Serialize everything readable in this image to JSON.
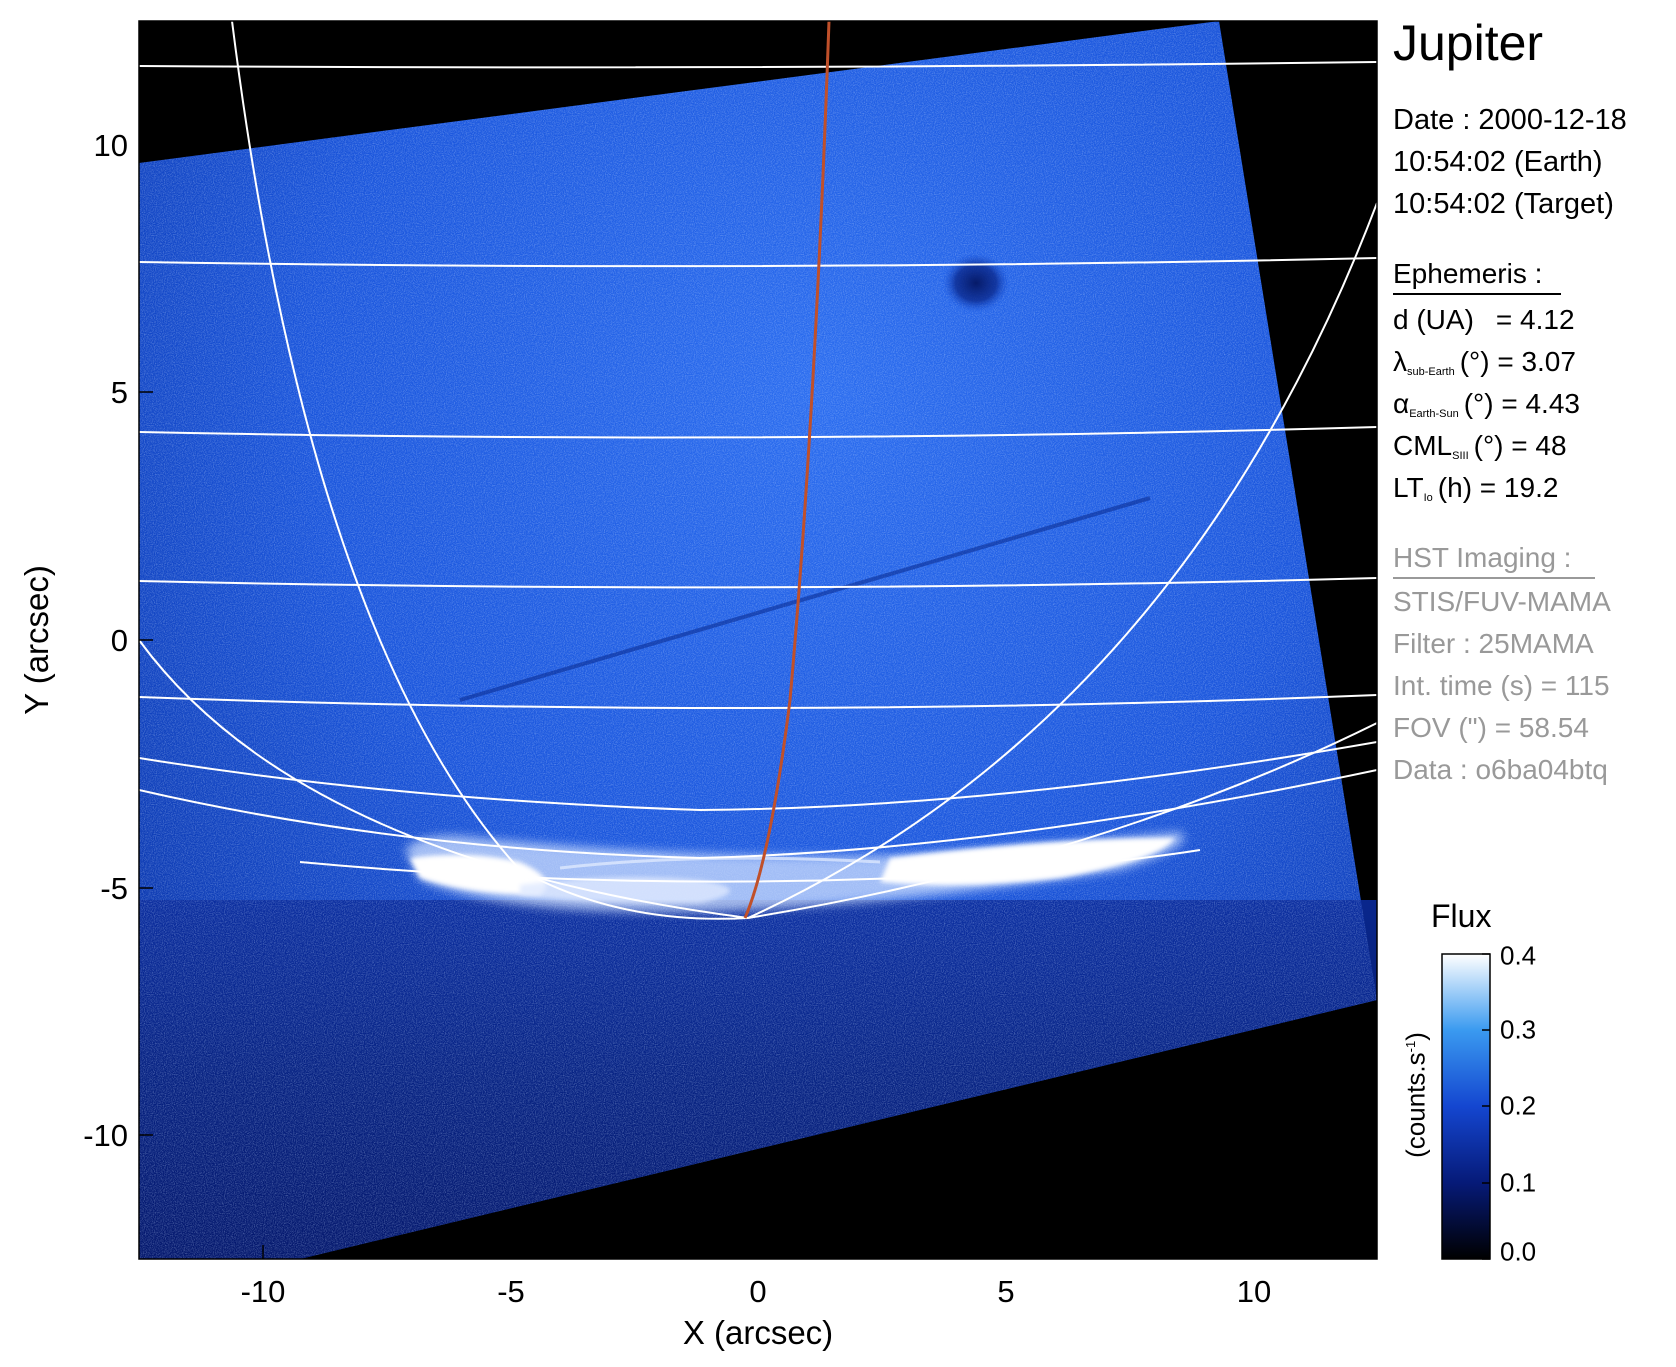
{
  "image": {
    "description_icon": "jupiter-aurora-image",
    "colors": {
      "background_sky": "#000000",
      "disk_blue": "#1246c8",
      "grid_line": "#ffffff",
      "meridian_line": "#c0502a",
      "aurora": "#f4f8ff"
    }
  },
  "axes": {
    "x_label": "X (arcsec)",
    "y_label": "Y (arcsec)",
    "x_range": [
      -12.5,
      12.5
    ],
    "y_range": [
      -12.5,
      12.5
    ],
    "x_ticks": [
      "-10",
      "-5",
      "0",
      "5",
      "10"
    ],
    "y_ticks": [
      "10",
      "5",
      "0",
      "-5",
      "-10"
    ]
  },
  "info": {
    "target": "Jupiter",
    "date": "Date : 2000-12-18",
    "time_earth": "10:54:02 (Earth)",
    "time_target": "10:54:02 (Target)"
  },
  "ephemeris": {
    "heading": "Ephemeris :",
    "d_label": "d (UA)",
    "d_value": "= 4.12",
    "lambda_symbol": "λ",
    "lambda_sub": "sub-Earth",
    "lambda_value": "(°) = 3.07",
    "alpha_symbol": "α",
    "alpha_sub": "Earth-Sun",
    "alpha_value": "(°) = 4.43",
    "cml_label": "CML",
    "cml_sub": "SIII",
    "cml_value": "(°) = 48",
    "lt_label": "LT",
    "lt_sub": "Io",
    "lt_value": "(h) = 19.2"
  },
  "hst": {
    "heading": "HST Imaging :",
    "instrument": "STIS/FUV-MAMA",
    "filter": "Filter : 25MAMA",
    "int_time": "Int. time (s) = 115",
    "fov": "FOV (\") = 58.54",
    "dataset": "Data : o6ba04btq"
  },
  "colorbar": {
    "title": "Flux",
    "unit_text": "(counts.s",
    "unit_sup": "-1",
    "unit_close": ")",
    "range": [
      0.0,
      0.4
    ],
    "ticks": [
      "0.4",
      "0.3",
      "0.2",
      "0.1",
      "0.0"
    ]
  }
}
